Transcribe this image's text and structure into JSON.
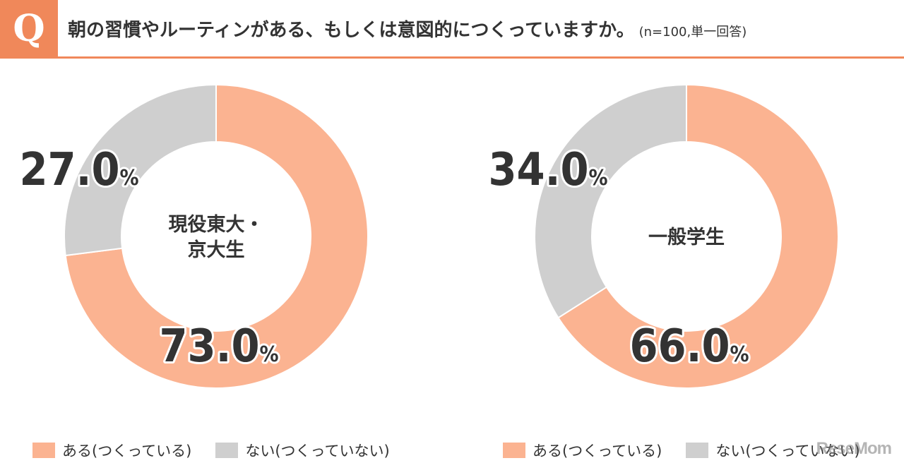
{
  "header": {
    "badge": "Q",
    "question": "朝の習慣やルーティンがある、もしくは意図的につくっていますか。",
    "note": "(n=100,単一回答)"
  },
  "colors": {
    "yes": "#fbb391",
    "no": "#cfcfcf",
    "accent": "#f0885a"
  },
  "chart_data": [
    {
      "type": "pie",
      "center_label": [
        "現役東大・",
        "京大生"
      ],
      "categories": [
        "ある(つくっている)",
        "ない(つくっていない)"
      ],
      "values": [
        73.0,
        27.0
      ],
      "labels": [
        "73.0",
        "27.0"
      ],
      "unit": "%"
    },
    {
      "type": "pie",
      "center_label": [
        "一般学生"
      ],
      "categories": [
        "ある(つくっている)",
        "ない(つくっていない)"
      ],
      "values": [
        66.0,
        34.0
      ],
      "labels": [
        "66.0",
        "34.0"
      ],
      "unit": "%"
    }
  ],
  "legend": {
    "yes": "ある(つくっている)",
    "no": "ない(つくっていない)"
  },
  "watermark": "ReseMom"
}
